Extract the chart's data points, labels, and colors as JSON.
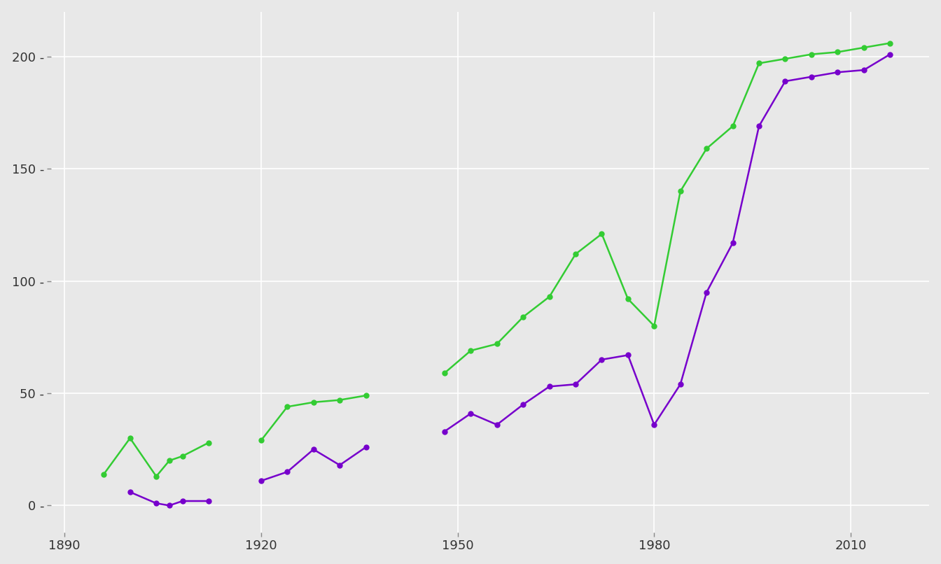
{
  "male_segments": [
    [
      1896,
      1900,
      1904,
      1906,
      1908,
      1912
    ],
    [
      1920,
      1924,
      1928,
      1932,
      1936
    ],
    [
      1948,
      1952,
      1956,
      1960,
      1964,
      1968,
      1972,
      1976,
      1980,
      1984,
      1988,
      1992,
      1996,
      2000,
      2004,
      2008,
      2012,
      2016
    ]
  ],
  "male_seg_values": [
    [
      14,
      30,
      13,
      20,
      22,
      28
    ],
    [
      29,
      44,
      46,
      47,
      49
    ],
    [
      59,
      69,
      72,
      84,
      93,
      112,
      121,
      92,
      80,
      140,
      159,
      169,
      197,
      199,
      201,
      202,
      204,
      206
    ]
  ],
  "female_segments": [
    [
      1900,
      1904,
      1906,
      1908,
      1912
    ],
    [
      1920,
      1924,
      1928,
      1932,
      1936
    ],
    [
      1948,
      1952,
      1956,
      1960,
      1964,
      1968,
      1972,
      1976,
      1980,
      1984,
      1988,
      1992,
      1996,
      2000,
      2004,
      2008,
      2012,
      2016
    ]
  ],
  "female_seg_values": [
    [
      6,
      1,
      0,
      2,
      2
    ],
    [
      11,
      15,
      25,
      18,
      26
    ],
    [
      33,
      41,
      36,
      45,
      53,
      54,
      65,
      67,
      36,
      54,
      95,
      117,
      169,
      189,
      191,
      193,
      194,
      201
    ]
  ],
  "male_color": "#33cc33",
  "female_color": "#7700cc",
  "bg_color": "#e8e8e8",
  "grid_color": "#ffffff",
  "xlim": [
    1888,
    2022
  ],
  "ylim": [
    -12,
    220
  ],
  "yticks": [
    0,
    50,
    100,
    150,
    200
  ],
  "xticks": [
    1890,
    1920,
    1950,
    1980,
    2010
  ]
}
